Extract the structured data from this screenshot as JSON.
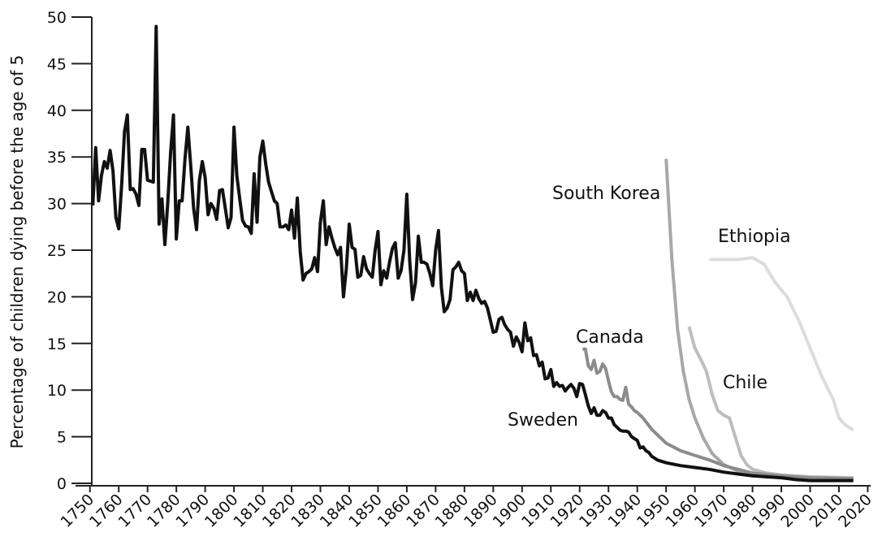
{
  "chart_data": {
    "type": "line",
    "y_label": "Percentage of children dying before the age of 5",
    "xlim": [
      1745,
      2021
    ],
    "ylim": [
      0,
      50
    ],
    "xticks": [
      1750,
      1760,
      1770,
      1780,
      1790,
      1800,
      1810,
      1820,
      1830,
      1840,
      1850,
      1860,
      1870,
      1880,
      1890,
      1900,
      1910,
      1920,
      1930,
      1940,
      1950,
      1960,
      1970,
      1980,
      1990,
      2000,
      2010,
      2020
    ],
    "yticks": [
      0,
      5,
      10,
      15,
      20,
      25,
      30,
      35,
      40,
      45,
      50
    ],
    "series": [
      {
        "name": "Sweden",
        "color": "#111111",
        "x": [
          1751,
          1752,
          1753,
          1754,
          1755,
          1756,
          1757,
          1758,
          1759,
          1760,
          1761,
          1762,
          1763,
          1764,
          1765,
          1766,
          1767,
          1768,
          1769,
          1770,
          1771,
          1772,
          1773,
          1774,
          1775,
          1776,
          1777,
          1778,
          1779,
          1780,
          1781,
          1782,
          1783,
          1784,
          1785,
          1786,
          1787,
          1788,
          1789,
          1790,
          1791,
          1792,
          1793,
          1794,
          1795,
          1796,
          1797,
          1798,
          1799,
          1800,
          1801,
          1802,
          1803,
          1804,
          1805,
          1806,
          1807,
          1808,
          1809,
          1810,
          1811,
          1812,
          1813,
          1814,
          1815,
          1816,
          1817,
          1818,
          1819,
          1820,
          1821,
          1822,
          1823,
          1824,
          1825,
          1826,
          1827,
          1828,
          1829,
          1830,
          1831,
          1832,
          1833,
          1834,
          1835,
          1836,
          1837,
          1838,
          1839,
          1840,
          1841,
          1842,
          1843,
          1844,
          1845,
          1846,
          1847,
          1848,
          1849,
          1850,
          1851,
          1852,
          1853,
          1854,
          1855,
          1856,
          1857,
          1858,
          1859,
          1860,
          1861,
          1862,
          1863,
          1864,
          1865,
          1866,
          1867,
          1868,
          1869,
          1870,
          1871,
          1872,
          1873,
          1874,
          1875,
          1876,
          1877,
          1878,
          1879,
          1880,
          1881,
          1882,
          1883,
          1884,
          1885,
          1886,
          1887,
          1888,
          1889,
          1890,
          1891,
          1892,
          1893,
          1894,
          1895,
          1896,
          1897,
          1898,
          1899,
          1900,
          1901,
          1902,
          1903,
          1904,
          1905,
          1906,
          1907,
          1908,
          1909,
          1910,
          1911,
          1912,
          1913,
          1914,
          1915,
          1916,
          1917,
          1918,
          1919,
          1920,
          1921,
          1922,
          1923,
          1924,
          1925,
          1926,
          1927,
          1928,
          1929,
          1930,
          1931,
          1932,
          1933,
          1934,
          1935,
          1936,
          1937,
          1938,
          1939,
          1940,
          1941,
          1942,
          1943,
          1944,
          1945,
          1946,
          1947,
          1950,
          1955,
          1960,
          1965,
          1970,
          1975,
          1980,
          1985,
          1990,
          1995,
          2000,
          2005,
          2010,
          2015
        ],
        "values": [
          29.8,
          36,
          30.3,
          33,
          34.5,
          33.8,
          35.7,
          33.5,
          28.5,
          27.3,
          32,
          37.7,
          39.5,
          31.5,
          31.6,
          31,
          29.8,
          35.8,
          35.8,
          32.5,
          32.4,
          32.3,
          49,
          27.8,
          30.5,
          25.6,
          30,
          35.5,
          39.5,
          26.2,
          30.3,
          30.3,
          34.8,
          38.2,
          34,
          29.5,
          27.2,
          32.5,
          34.5,
          32.8,
          28.8,
          30,
          29.5,
          28.3,
          31.4,
          31.5,
          29.5,
          27.4,
          28.5,
          38.2,
          33,
          30.5,
          28.2,
          27.6,
          27.5,
          26.8,
          33.2,
          28,
          35,
          36.7,
          34.3,
          32.3,
          31.3,
          30.3,
          30,
          27.5,
          27.5,
          27.7,
          27.2,
          29.3,
          26.3,
          30.6,
          24.8,
          21.8,
          22.5,
          22.7,
          23,
          24.2,
          22.7,
          28,
          30.3,
          25.6,
          27.5,
          26.3,
          25.3,
          24.5,
          25.3,
          20,
          23,
          27.8,
          25.3,
          25.1,
          22.1,
          22.3,
          24.3,
          23,
          22.5,
          22.1,
          25,
          27,
          21.3,
          22.8,
          22,
          23.7,
          25.2,
          25.8,
          22,
          22.8,
          25,
          31,
          23.8,
          19.7,
          21.5,
          26.5,
          23.7,
          23.7,
          23.5,
          22.5,
          21.2,
          25,
          27.1,
          21,
          18.4,
          18.8,
          19.7,
          22.9,
          23.2,
          23.7,
          22.8,
          22.5,
          19.6,
          20.5,
          19.6,
          20.7,
          19.8,
          19.3,
          19.5,
          18.8,
          17.5,
          16.2,
          16.3,
          17.6,
          17.8,
          17,
          16.5,
          16.2,
          14.7,
          15.7,
          15.1,
          14.1,
          17.2,
          15.3,
          15.6,
          13.7,
          13.8,
          12.6,
          13,
          11.2,
          11.3,
          12.2,
          10.4,
          10.8,
          10.4,
          10.5,
          9.9,
          10.3,
          10.6,
          10.2,
          9.3,
          10.7,
          10.6,
          9.5,
          8.3,
          7.5,
          8.1,
          7.3,
          7.3,
          7.8,
          7.6,
          7,
          7,
          6.3,
          6,
          5.7,
          5.6,
          5.6,
          5.5,
          5,
          4.8,
          4.6,
          3.8,
          3.9,
          3.5,
          3.3,
          2.9,
          2.7,
          2.5,
          2.2,
          1.9,
          1.7,
          1.5,
          1.2,
          1,
          0.8,
          0.7,
          0.6,
          0.4,
          0.3,
          0.3,
          0.3,
          0.3
        ]
      },
      {
        "name": "Canada",
        "color": "#8c8c8c",
        "x": [
          1921,
          1922,
          1923,
          1924,
          1925,
          1926,
          1927,
          1928,
          1929,
          1930,
          1931,
          1932,
          1933,
          1934,
          1935,
          1936,
          1937,
          1938,
          1939,
          1940,
          1942,
          1945,
          1950,
          1955,
          1960,
          1965,
          1970,
          1975,
          1980,
          1990,
          2000,
          2015
        ],
        "values": [
          14.4,
          14.4,
          12.6,
          12.2,
          13.2,
          11.8,
          12,
          12.8,
          12.3,
          11,
          9.8,
          9.3,
          9.3,
          9,
          8.9,
          10.3,
          8.5,
          8.2,
          7.8,
          7.6,
          7,
          5.8,
          4.3,
          3.5,
          3,
          2.5,
          1.9,
          1.5,
          1.1,
          0.8,
          0.6,
          0.5
        ]
      },
      {
        "name": "South Korea",
        "color": "#a8a8a8",
        "x": [
          1950,
          1952,
          1954,
          1956,
          1958,
          1960,
          1963,
          1966,
          1970,
          1975,
          1980,
          1990,
          2000,
          2015
        ],
        "values": [
          34.8,
          24,
          16.5,
          12,
          9,
          7,
          4.8,
          3.2,
          2,
          1.3,
          0.9,
          0.6,
          0.5,
          0.4
        ]
      },
      {
        "name": "Chile",
        "color": "#bdbdbd",
        "x": [
          1958,
          1960,
          1962,
          1964,
          1966,
          1968,
          1970,
          1972,
          1974,
          1976,
          1978,
          1980,
          1985,
          1990,
          2000,
          2015
        ],
        "values": [
          16.8,
          14.5,
          13.3,
          12,
          9.5,
          7.8,
          7.3,
          7,
          5,
          3,
          2,
          1.5,
          1.1,
          0.9,
          0.7,
          0.6
        ]
      },
      {
        "name": "Ethiopia",
        "color": "#dcdcdc",
        "x": [
          1965,
          1975,
          1980,
          1984,
          1988,
          1992,
          1996,
          2000,
          2004,
          2008,
          2010,
          2012,
          2015
        ],
        "values": [
          24,
          24,
          24.2,
          23.5,
          21.5,
          20,
          17.5,
          14.5,
          11.5,
          9,
          7,
          6.3,
          5.7
        ]
      }
    ]
  }
}
